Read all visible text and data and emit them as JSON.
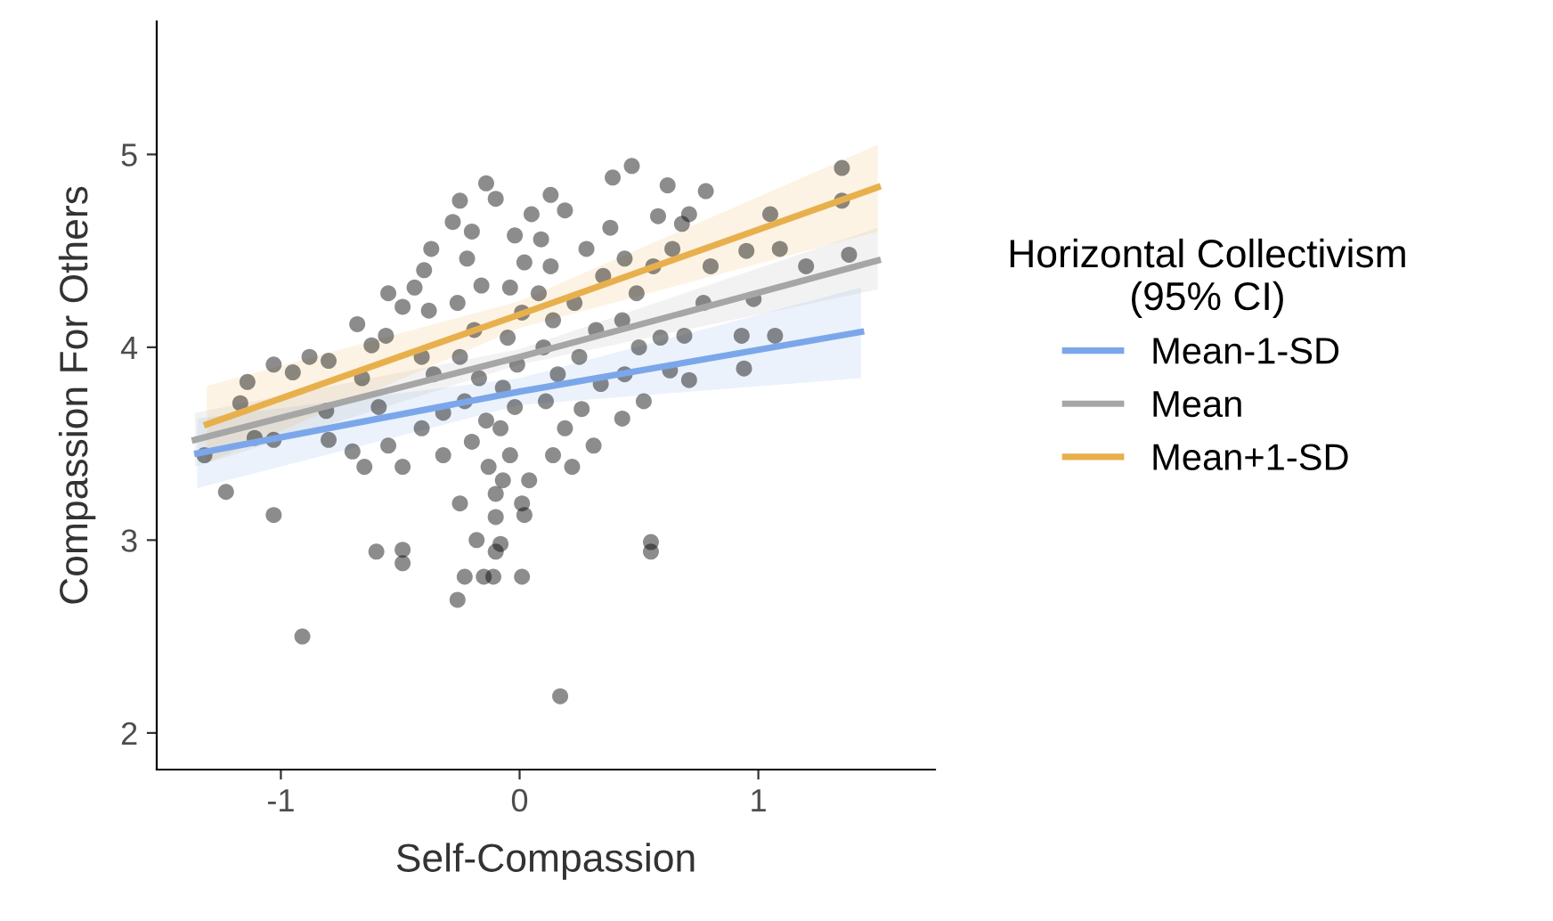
{
  "chart_data": {
    "type": "scatter",
    "xlabel": "Self-Compassion",
    "ylabel": "Compassion For Others",
    "legend_title": "Horizontal Collectivism\n(95% CI)",
    "xlim": [
      -1.52,
      1.74
    ],
    "ylim": [
      1.81,
      5.69
    ],
    "xticks": [
      -1,
      0,
      1
    ],
    "yticks": [
      2,
      3,
      4,
      5
    ],
    "grid": false,
    "legend": "right",
    "series": [
      {
        "color": "#000000",
        "marker": "circle",
        "x": [
          -1.23,
          -1.03,
          -0.91,
          0.17,
          0.55,
          0.55,
          -0.6,
          -0.49,
          -0.49,
          -0.26,
          -0.23,
          -0.15,
          -0.11,
          0.01,
          -0.18,
          -0.1,
          -0.1,
          -0.25,
          -0.08,
          0.02,
          0.01,
          0.04,
          -0.1,
          1.35,
          1.35,
          0.47,
          0.62,
          0.39,
          -0.14,
          -0.1,
          -0.25,
          0.13,
          0.19,
          0.78,
          0.71,
          0.68,
          0.58,
          1.05,
          1.09,
          0.95,
          1.38,
          1.2,
          0.98,
          1.07,
          0.93,
          0.94,
          0.63,
          0.71,
          0.69,
          -1.32,
          -1.17,
          -1.14,
          -1.11,
          -1.03,
          -1.03,
          -0.95,
          -0.88,
          -0.8,
          -0.81,
          -0.8,
          -0.7,
          -0.65,
          -0.68,
          -0.62,
          -0.56,
          -0.55,
          -0.49,
          -0.55,
          -0.49,
          -0.66,
          -0.59,
          -0.4,
          -0.37,
          -0.44,
          -0.38,
          -0.41,
          -0.36,
          -0.41,
          -0.32,
          -0.32,
          -0.28,
          -0.2,
          -0.22,
          -0.16,
          -0.26,
          -0.19,
          -0.25,
          -0.17,
          -0.23,
          -0.14,
          -0.2,
          -0.13,
          -0.07,
          -0.04,
          -0.08,
          -0.02,
          -0.07,
          -0.01,
          -0.05,
          0.01,
          -0.04,
          0.02,
          -0.02,
          0.05,
          0.09,
          0.13,
          0.08,
          0.14,
          0.1,
          0.16,
          0.11,
          0.19,
          0.14,
          0.22,
          0.31,
          0.26,
          0.34,
          0.25,
          0.32,
          0.23,
          0.35,
          0.28,
          0.38,
          0.44,
          0.49,
          0.43,
          0.5,
          0.44,
          0.52,
          0.43,
          0.59,
          0.56,
          0.64,
          0.8,
          0.77
        ],
        "values": [
          3.25,
          3.13,
          2.5,
          2.19,
          2.99,
          2.94,
          2.94,
          2.95,
          2.88,
          2.69,
          2.81,
          2.81,
          2.81,
          2.81,
          3.0,
          2.94,
          3.12,
          3.19,
          2.98,
          3.13,
          3.19,
          3.31,
          3.24,
          4.93,
          4.76,
          4.94,
          4.84,
          4.88,
          4.85,
          4.77,
          4.76,
          4.79,
          4.71,
          4.81,
          4.69,
          4.64,
          4.68,
          4.69,
          4.51,
          4.5,
          4.48,
          4.42,
          4.25,
          4.06,
          4.06,
          3.89,
          3.88,
          3.83,
          4.06,
          3.44,
          3.71,
          3.82,
          3.53,
          3.52,
          3.91,
          3.87,
          3.95,
          3.93,
          3.67,
          3.52,
          3.46,
          3.38,
          4.12,
          4.01,
          4.06,
          4.28,
          4.21,
          3.49,
          3.38,
          3.84,
          3.69,
          4.4,
          4.51,
          4.31,
          4.19,
          3.95,
          3.86,
          3.58,
          3.66,
          3.44,
          4.65,
          4.6,
          4.46,
          4.32,
          4.23,
          4.09,
          3.95,
          3.84,
          3.72,
          3.62,
          3.51,
          3.38,
          3.31,
          3.44,
          3.58,
          3.69,
          3.79,
          3.91,
          4.05,
          4.18,
          4.31,
          4.44,
          4.58,
          4.69,
          4.56,
          4.42,
          4.28,
          4.14,
          4.0,
          3.86,
          3.72,
          3.58,
          3.44,
          3.38,
          3.49,
          3.68,
          3.81,
          3.95,
          4.09,
          4.23,
          4.37,
          4.51,
          4.62,
          4.46,
          4.28,
          4.14,
          4.0,
          3.86,
          3.72,
          3.63,
          4.05,
          4.42,
          4.51,
          4.42,
          4.23
        ]
      },
      {
        "type": "line",
        "name": "Mean-1-SD",
        "color": "#7ba7ea",
        "x": [
          -1.35,
          0,
          1.43
        ],
        "values": [
          3.45,
          3.77,
          4.08
        ],
        "lower": [
          3.27,
          3.7,
          3.84
        ],
        "upper": [
          3.63,
          3.84,
          4.31
        ]
      },
      {
        "type": "line",
        "name": "Mean",
        "color": "#a6a6a6",
        "x": [
          -1.36,
          0,
          1.5
        ],
        "values": [
          3.52,
          3.95,
          4.45
        ],
        "lower": [
          3.38,
          3.91,
          4.3
        ],
        "upper": [
          3.66,
          3.99,
          4.62
        ]
      },
      {
        "type": "line",
        "name": "Mean+1-SD",
        "color": "#e8b04d",
        "x": [
          -1.31,
          0,
          1.5
        ],
        "values": [
          3.6,
          4.17,
          4.83
        ],
        "lower": [
          3.4,
          4.1,
          4.6
        ],
        "upper": [
          3.8,
          4.24,
          5.05
        ]
      }
    ]
  }
}
